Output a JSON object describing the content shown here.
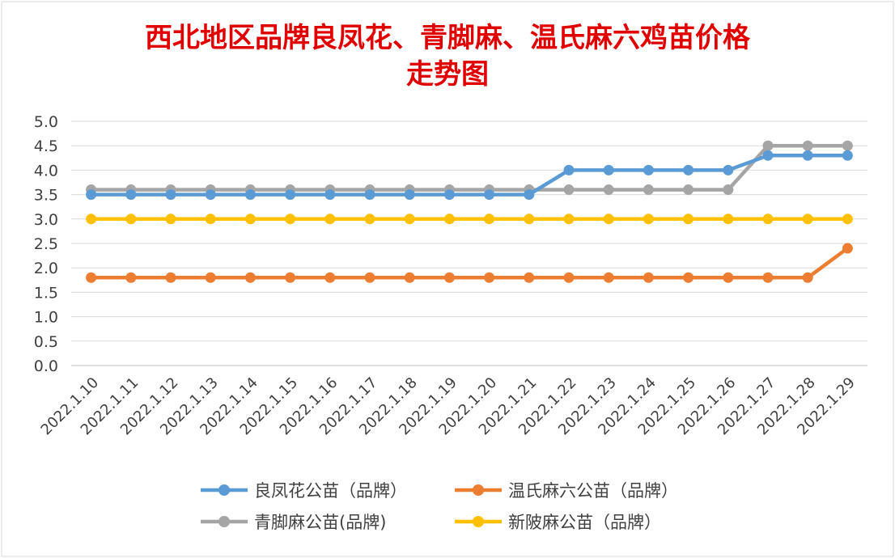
{
  "chart_data": {
    "type": "line",
    "title": "西北地区品牌良凤花、青脚麻、温氏麻六鸡苗价格",
    "title_line2": "走势图",
    "xlabel": "",
    "ylabel": "",
    "ylim": [
      0,
      5
    ],
    "y_ticks": [
      "5.0",
      "4.5",
      "4.0",
      "3.5",
      "3.0",
      "2.5",
      "2.0",
      "1.5",
      "1.0",
      "0.5",
      "0.0"
    ],
    "grid": true,
    "legend_position": "bottom",
    "categories": [
      "2022.1.10",
      "2022.1.11",
      "2022.1.12",
      "2022.1.13",
      "2022.1.14",
      "2022.1.15",
      "2022.1.16",
      "2022.1.17",
      "2022.1.18",
      "2022.1.19",
      "2022.1.20",
      "2022.1.21",
      "2022.1.22",
      "2022.1.23",
      "2022.1.24",
      "2022.1.25",
      "2022.1.26",
      "2022.1.27",
      "2022.1.28",
      "2022.1.29"
    ],
    "series": [
      {
        "name": "良凤花公苗（品牌）",
        "color": "#5b9bd5",
        "values": [
          3.5,
          3.5,
          3.5,
          3.5,
          3.5,
          3.5,
          3.5,
          3.5,
          3.5,
          3.5,
          3.5,
          3.5,
          4.0,
          4.0,
          4.0,
          4.0,
          4.0,
          4.3,
          4.3,
          4.3
        ]
      },
      {
        "name": "温氏麻六公苗（品牌）",
        "color": "#ed7d31",
        "values": [
          1.8,
          1.8,
          1.8,
          1.8,
          1.8,
          1.8,
          1.8,
          1.8,
          1.8,
          1.8,
          1.8,
          1.8,
          1.8,
          1.8,
          1.8,
          1.8,
          1.8,
          1.8,
          1.8,
          2.4
        ]
      },
      {
        "name": "青脚麻公苗(品牌)",
        "color": "#a5a5a5",
        "values": [
          3.6,
          3.6,
          3.6,
          3.6,
          3.6,
          3.6,
          3.6,
          3.6,
          3.6,
          3.6,
          3.6,
          3.6,
          3.6,
          3.6,
          3.6,
          3.6,
          3.6,
          4.5,
          4.5,
          4.5
        ]
      },
      {
        "name": "新陂麻公苗（品牌）",
        "color": "#ffc000",
        "values": [
          3.0,
          3.0,
          3.0,
          3.0,
          3.0,
          3.0,
          3.0,
          3.0,
          3.0,
          3.0,
          3.0,
          3.0,
          3.0,
          3.0,
          3.0,
          3.0,
          3.0,
          3.0,
          3.0,
          3.0
        ]
      }
    ],
    "legend_order": [
      0,
      1,
      2,
      3
    ]
  }
}
